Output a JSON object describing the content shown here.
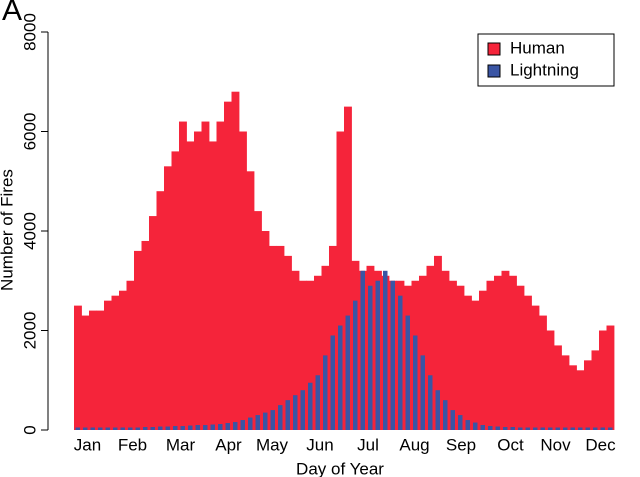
{
  "chart_data": {
    "type": "histogram",
    "title": "A",
    "xlabel": "Day of Year",
    "ylabel": "Number of Fires",
    "bins": [
      0,
      5,
      10,
      15,
      20,
      25,
      30,
      35,
      40,
      45,
      50,
      55,
      60,
      65,
      70,
      75,
      80,
      85,
      90,
      95,
      100,
      105,
      110,
      115,
      120,
      125,
      130,
      135,
      140,
      145,
      150,
      155,
      160,
      165,
      170,
      175,
      180,
      185,
      190,
      195,
      200,
      205,
      210,
      215,
      220,
      225,
      230,
      235,
      240,
      245,
      250,
      255,
      260,
      265,
      270,
      275,
      280,
      285,
      290,
      295,
      300,
      305,
      310,
      315,
      320,
      325,
      330,
      335,
      340,
      345,
      350,
      355,
      360
    ],
    "series": [
      {
        "name": "Human",
        "color": "#f5243a",
        "values": [
          2500,
          2300,
          2400,
          2400,
          2600,
          2700,
          2800,
          3000,
          3600,
          3800,
          4300,
          4800,
          5300,
          5600,
          6200,
          5800,
          6000,
          6200,
          5800,
          6200,
          6600,
          6800,
          6000,
          5200,
          4400,
          4000,
          3700,
          3700,
          3500,
          3200,
          3000,
          3000,
          3100,
          3300,
          3700,
          6000,
          6500,
          3400,
          3200,
          3300,
          3200,
          3100,
          3000,
          3000,
          2900,
          3000,
          3100,
          3300,
          3500,
          3200,
          3000,
          2900,
          2700,
          2600,
          2800,
          3000,
          3100,
          3200,
          3100,
          2900,
          2700,
          2500,
          2300,
          2000,
          1700,
          1500,
          1300,
          1200,
          1400,
          1600,
          2000,
          2100
        ]
      },
      {
        "name": "Lightning",
        "color": "#3a55a4",
        "values": [
          50,
          50,
          50,
          50,
          50,
          50,
          50,
          50,
          50,
          60,
          60,
          70,
          70,
          80,
          80,
          90,
          100,
          100,
          110,
          120,
          140,
          160,
          200,
          250,
          300,
          350,
          400,
          500,
          600,
          700,
          800,
          950,
          1100,
          1500,
          1900,
          2100,
          2300,
          2600,
          3200,
          2900,
          3000,
          3200,
          3000,
          2700,
          2300,
          1900,
          1500,
          1100,
          800,
          600,
          400,
          300,
          200,
          150,
          100,
          80,
          70,
          60,
          60,
          50,
          50,
          50,
          50,
          50,
          50,
          50,
          50,
          50,
          50,
          50,
          50,
          50
        ]
      }
    ],
    "xlim": [
      0,
      360
    ],
    "ylim": [
      0,
      8000
    ],
    "yticks": [
      0,
      2000,
      4000,
      6000,
      8000
    ],
    "xticks": [
      {
        "value": 9,
        "label": "Jan"
      },
      {
        "value": 39,
        "label": "Feb"
      },
      {
        "value": 71,
        "label": "Mar"
      },
      {
        "value": 103,
        "label": "Apr"
      },
      {
        "value": 132,
        "label": "May"
      },
      {
        "value": 164,
        "label": "Jun"
      },
      {
        "value": 196,
        "label": "Jul"
      },
      {
        "value": 227,
        "label": "Aug"
      },
      {
        "value": 258,
        "label": "Sep"
      },
      {
        "value": 291,
        "label": "Oct"
      },
      {
        "value": 321,
        "label": "Nov"
      },
      {
        "value": 351,
        "label": "Dec"
      }
    ],
    "legend": "upper right"
  }
}
